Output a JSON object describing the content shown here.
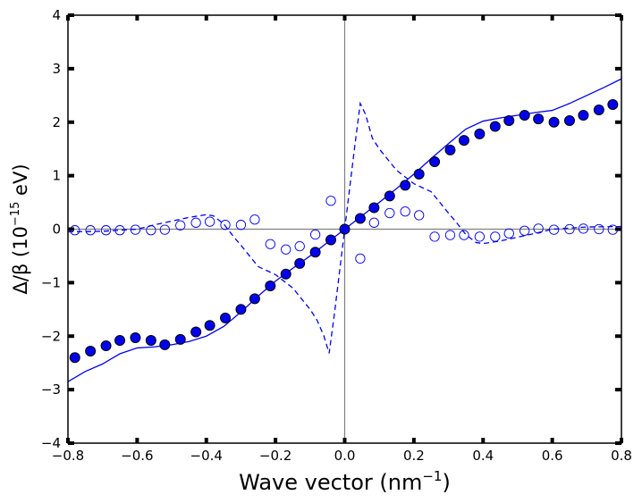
{
  "chart_data": {
    "type": "scatter",
    "title": "",
    "xlabel": "Wave vector (nm",
    "xlabel_sup": "−1",
    "xlabel_end": ")",
    "ylabel": "Δ/β (10",
    "ylabel_sup": "−15",
    "ylabel_end": " eV)",
    "xlim": [
      -0.8,
      0.8
    ],
    "ylim": [
      -4,
      4
    ],
    "xticks": [
      -0.8,
      -0.6,
      -0.4,
      -0.2,
      0.0,
      0.2,
      0.4,
      0.6,
      0.8
    ],
    "xtick_labels": [
      "−0.8",
      "−0.6",
      "−0.4",
      "−0.2",
      "0.0",
      "0.2",
      "0.4",
      "0.6",
      "0.8"
    ],
    "yticks": [
      -4,
      -3,
      -2,
      -1,
      0,
      1,
      2,
      3,
      4
    ],
    "ytick_labels": [
      "−4",
      "−3",
      "−2",
      "−1",
      "0",
      "1",
      "2",
      "3",
      "4"
    ],
    "grid": false,
    "reference_lines": {
      "x": 0,
      "y": 0,
      "color": "#808080"
    },
    "series": [
      {
        "name": "filled circles",
        "style": "marker-filled",
        "color": "#0000ee",
        "x": [
          -0.78,
          -0.735,
          -0.69,
          -0.65,
          -0.605,
          -0.56,
          -0.52,
          -0.475,
          -0.43,
          -0.39,
          -0.345,
          -0.3,
          -0.26,
          -0.215,
          -0.17,
          -0.13,
          -0.085,
          -0.04,
          0.0,
          0.045,
          0.085,
          0.13,
          0.175,
          0.215,
          0.26,
          0.305,
          0.345,
          0.39,
          0.435,
          0.475,
          0.52,
          0.56,
          0.605,
          0.65,
          0.69,
          0.735,
          0.775
        ],
        "y": [
          -2.4,
          -2.28,
          -2.18,
          -2.08,
          -2.03,
          -2.08,
          -2.16,
          -2.06,
          -1.92,
          -1.8,
          -1.66,
          -1.5,
          -1.3,
          -1.06,
          -0.84,
          -0.64,
          -0.43,
          -0.2,
          0.0,
          0.2,
          0.4,
          0.62,
          0.82,
          1.03,
          1.26,
          1.48,
          1.66,
          1.78,
          1.92,
          2.03,
          2.13,
          2.06,
          2.0,
          2.03,
          2.13,
          2.23,
          2.33
        ]
      },
      {
        "name": "open circles",
        "style": "marker-open",
        "color": "#0000ee",
        "x": [
          -0.78,
          -0.735,
          -0.69,
          -0.65,
          -0.605,
          -0.56,
          -0.52,
          -0.475,
          -0.43,
          -0.39,
          -0.345,
          -0.3,
          -0.26,
          -0.215,
          -0.17,
          -0.13,
          -0.085,
          -0.04,
          0.045,
          0.085,
          0.13,
          0.175,
          0.215,
          0.26,
          0.305,
          0.345,
          0.39,
          0.435,
          0.475,
          0.52,
          0.56,
          0.605,
          0.65,
          0.69,
          0.735,
          0.775
        ],
        "y": [
          -0.02,
          -0.02,
          -0.02,
          -0.02,
          -0.01,
          -0.02,
          -0.01,
          0.07,
          0.12,
          0.14,
          0.08,
          0.08,
          0.18,
          -0.28,
          -0.38,
          -0.32,
          -0.1,
          0.53,
          -0.55,
          0.12,
          0.3,
          0.33,
          0.26,
          -0.14,
          -0.11,
          -0.11,
          -0.14,
          -0.14,
          -0.08,
          -0.03,
          0.01,
          -0.01,
          0.0,
          0.01,
          0.0,
          -0.01
        ]
      },
      {
        "name": "solid line",
        "style": "line-solid",
        "color": "#0000ee",
        "x": [
          -0.8,
          -0.75,
          -0.7,
          -0.65,
          -0.6,
          -0.55,
          -0.5,
          -0.45,
          -0.4,
          -0.35,
          -0.3,
          -0.25,
          -0.2,
          -0.15,
          -0.1,
          -0.05,
          0.0,
          0.05,
          0.1,
          0.15,
          0.2,
          0.25,
          0.3,
          0.35,
          0.4,
          0.45,
          0.5,
          0.55,
          0.6,
          0.65,
          0.7,
          0.75,
          0.8
        ],
        "y": [
          -2.85,
          -2.66,
          -2.52,
          -2.33,
          -2.22,
          -2.2,
          -2.16,
          -2.1,
          -2.0,
          -1.82,
          -1.55,
          -1.25,
          -0.97,
          -0.73,
          -0.5,
          -0.25,
          0.0,
          0.25,
          0.5,
          0.76,
          1.03,
          1.32,
          1.6,
          1.87,
          2.02,
          2.08,
          2.13,
          2.18,
          2.22,
          2.35,
          2.5,
          2.65,
          2.81
        ]
      },
      {
        "name": "dashed line",
        "style": "line-dashed",
        "color": "#0000ee",
        "x": [
          -0.8,
          -0.7,
          -0.6,
          -0.55,
          -0.5,
          -0.45,
          -0.4,
          -0.38,
          -0.35,
          -0.32,
          -0.3,
          -0.25,
          -0.2,
          -0.15,
          -0.1,
          -0.08,
          -0.06,
          -0.045,
          -0.03,
          0.0,
          0.03,
          0.045,
          0.06,
          0.08,
          0.1,
          0.15,
          0.2,
          0.25,
          0.3,
          0.32,
          0.35,
          0.38,
          0.4,
          0.45,
          0.5,
          0.55,
          0.6,
          0.7,
          0.8
        ],
        "y": [
          -0.05,
          -0.04,
          0.0,
          0.08,
          0.15,
          0.22,
          0.27,
          0.25,
          0.1,
          -0.15,
          -0.3,
          -0.7,
          -0.85,
          -1.1,
          -1.5,
          -1.7,
          -2.0,
          -2.32,
          -1.6,
          0.0,
          1.6,
          2.35,
          2.15,
          1.7,
          1.5,
          1.1,
          0.85,
          0.7,
          0.3,
          0.15,
          -0.1,
          -0.25,
          -0.27,
          -0.22,
          -0.15,
          -0.08,
          0.0,
          0.04,
          0.05
        ]
      }
    ]
  }
}
